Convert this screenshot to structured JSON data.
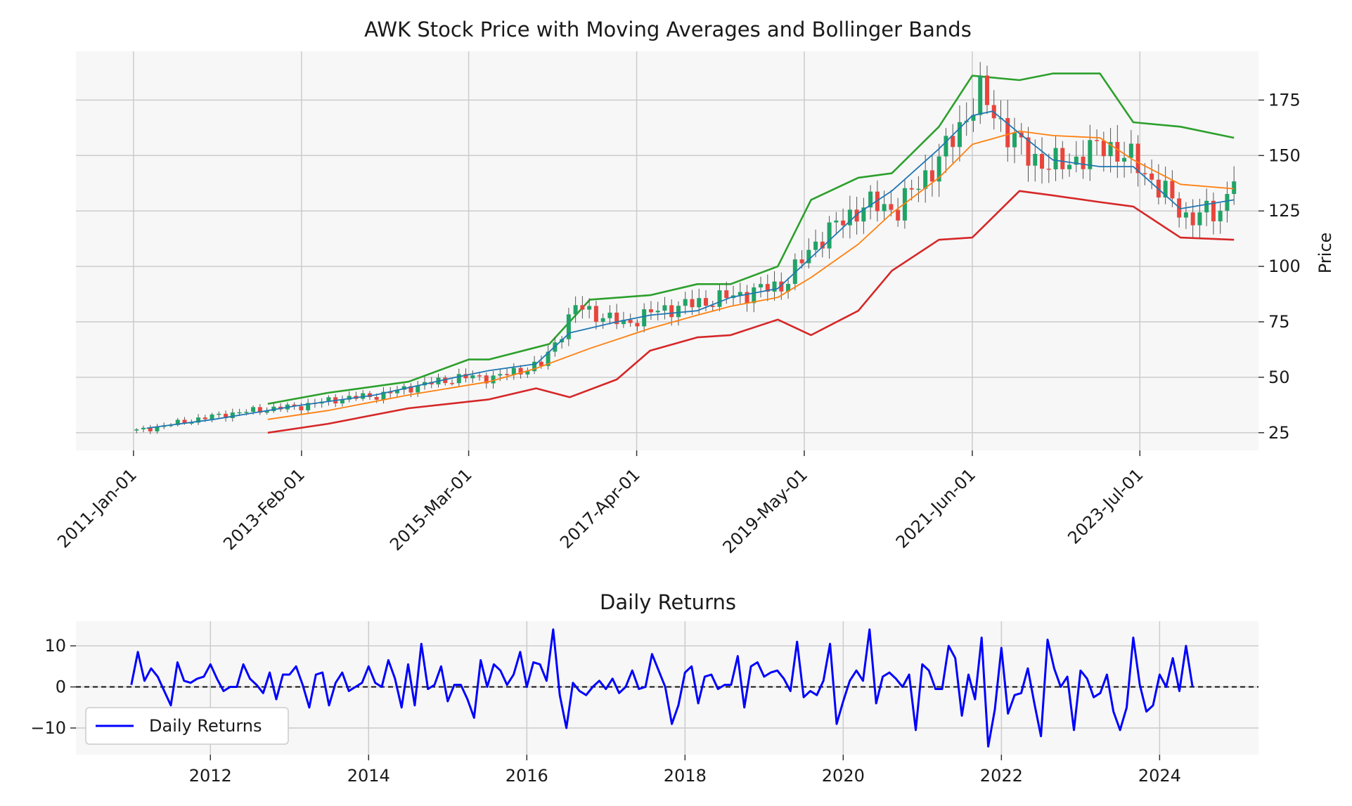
{
  "chart_data": [
    {
      "type": "candlestick",
      "title": "AWK Stock Price with Moving Averages and Bollinger Bands",
      "ylabel": "Price",
      "xlabel": "",
      "x_tick_labels": [
        "2011-Jan-01",
        "2013-Feb-01",
        "2015-Mar-01",
        "2017-Apr-01",
        "2019-May-01",
        "2021-Jun-01",
        "2023-Jul-01"
      ],
      "x_ticks": [
        "2011-01-01",
        "2013-02-01",
        "2015-03-01",
        "2017-04-01",
        "2019-05-01",
        "2021-06-01",
        "2023-07-01"
      ],
      "y_ticks": [
        25,
        50,
        75,
        100,
        125,
        150,
        175
      ],
      "xlim": [
        "2010-04-15",
        "2024-12-20"
      ],
      "ylim": [
        17,
        197
      ],
      "grid": true,
      "y_axis_side": "right",
      "colors": {
        "up": "#21a366",
        "down": "#e8453c",
        "wick": "#555555",
        "ma_short": "#1f77b4",
        "ma_long": "#ff7f0e",
        "bb_upper": "#2ca02c",
        "bb_lower": "#d62728",
        "panel_bg": "#f7f7f7",
        "grid": "#cccccc"
      },
      "series": [
        {
          "role": "ohlc",
          "x": [
            "2011-01-31",
            "2011-06-30",
            "2012-01-31",
            "2012-06-30",
            "2013-01-31",
            "2013-06-30",
            "2014-01-31",
            "2014-06-30",
            "2015-01-31",
            "2015-06-30",
            "2016-01-31",
            "2016-06-30",
            "2017-01-31",
            "2017-06-30",
            "2018-01-31",
            "2018-06-30",
            "2019-01-31",
            "2019-06-30",
            "2020-01-31",
            "2020-06-30",
            "2021-01-31",
            "2021-06-30",
            "2022-01-31",
            "2022-06-30",
            "2023-01-31",
            "2023-06-30",
            "2024-01-31",
            "2024-06-30",
            "2024-08-31"
          ],
          "close": [
            26,
            29,
            33,
            35,
            37,
            40,
            42,
            46,
            50,
            50,
            56,
            82,
            74,
            80,
            84,
            87,
            92,
            112,
            128,
            126,
            152,
            178,
            150,
            145,
            155,
            145,
            122,
            125,
            142
          ]
        },
        {
          "role": "ma_short",
          "x": [
            "2011-03-01",
            "2012-01-01",
            "2013-01-01",
            "2014-01-01",
            "2015-01-01",
            "2015-06-01",
            "2016-01-01",
            "2016-06-01",
            "2017-01-01",
            "2017-06-01",
            "2018-01-01",
            "2018-06-01",
            "2019-01-01",
            "2019-06-01",
            "2020-01-01",
            "2020-06-01",
            "2021-01-01",
            "2021-06-01",
            "2021-09-01",
            "2022-01-01",
            "2022-06-01",
            "2023-01-01",
            "2023-06-01",
            "2024-01-01",
            "2024-08-31"
          ],
          "values": [
            27,
            31,
            37,
            42,
            50,
            53,
            56,
            70,
            75,
            78,
            80,
            86,
            90,
            104,
            124,
            134,
            153,
            168,
            170,
            160,
            148,
            145,
            145,
            126,
            130
          ]
        },
        {
          "role": "ma_long",
          "x": [
            "2012-09-01",
            "2013-06-01",
            "2014-06-01",
            "2015-06-01",
            "2016-01-01",
            "2016-09-01",
            "2017-06-01",
            "2018-01-01",
            "2018-06-01",
            "2019-01-01",
            "2019-06-01",
            "2020-01-01",
            "2020-06-01",
            "2021-01-01",
            "2021-06-01",
            "2022-01-01",
            "2022-06-01",
            "2023-01-01",
            "2023-06-01",
            "2024-01-01",
            "2024-08-31"
          ],
          "values": [
            31,
            35,
            42,
            48,
            54,
            63,
            72,
            78,
            82,
            86,
            95,
            110,
            124,
            140,
            155,
            161,
            159,
            158,
            148,
            137,
            135
          ]
        },
        {
          "role": "bb_upper",
          "x": [
            "2012-09-01",
            "2013-06-01",
            "2014-06-01",
            "2015-03-01",
            "2015-06-01",
            "2016-03-01",
            "2016-09-01",
            "2017-06-01",
            "2018-01-01",
            "2018-06-01",
            "2019-01-01",
            "2019-06-01",
            "2020-01-01",
            "2020-06-01",
            "2021-01-01",
            "2021-06-01",
            "2022-01-01",
            "2022-06-01",
            "2023-01-01",
            "2023-06-01",
            "2024-01-01",
            "2024-08-31"
          ],
          "values": [
            38,
            43,
            48,
            58,
            58,
            65,
            85,
            87,
            92,
            92,
            100,
            130,
            140,
            142,
            163,
            186,
            184,
            187,
            187,
            165,
            163,
            158
          ]
        },
        {
          "role": "bb_lower",
          "x": [
            "2012-09-01",
            "2013-06-01",
            "2014-06-01",
            "2015-06-01",
            "2016-01-01",
            "2016-06-01",
            "2017-01-01",
            "2017-06-01",
            "2018-01-01",
            "2018-06-01",
            "2019-01-01",
            "2019-06-01",
            "2020-01-01",
            "2020-06-01",
            "2021-01-01",
            "2021-06-01",
            "2022-01-01",
            "2022-06-01",
            "2023-01-01",
            "2023-06-01",
            "2024-01-01",
            "2024-08-31"
          ],
          "values": [
            25,
            29,
            36,
            40,
            45,
            41,
            49,
            62,
            68,
            69,
            76,
            69,
            80,
            98,
            112,
            113,
            134,
            132,
            129,
            127,
            113,
            112
          ]
        }
      ]
    },
    {
      "type": "line",
      "title": "Daily Returns",
      "xlabel": "",
      "ylabel": "",
      "x_tick_labels": [
        "2012",
        "2014",
        "2016",
        "2018",
        "2020",
        "2022",
        "2024"
      ],
      "y_ticks": [
        -10,
        0,
        10
      ],
      "xlim": [
        2010.3,
        2025.25
      ],
      "ylim": [
        -16.5,
        16
      ],
      "grid": true,
      "legend": {
        "position": "lower-left",
        "entries": [
          "Daily Returns"
        ]
      },
      "reference_line": {
        "y": 0,
        "style": "dashed",
        "color": "#111111"
      },
      "series": [
        {
          "name": "Daily Returns",
          "color": "#0000ff",
          "x_start": 2011.0,
          "step_months": 1,
          "values": [
            0.5,
            8.5,
            1.5,
            4.5,
            2.5,
            -1,
            -4.5,
            6,
            1.5,
            1,
            2,
            2.5,
            5.5,
            2,
            -1,
            0,
            0,
            5.5,
            2,
            0.5,
            -1.5,
            3.5,
            -3,
            3,
            3,
            5,
            0.5,
            -5,
            3,
            3.5,
            -4.5,
            1,
            3.5,
            -1,
            0,
            1,
            5,
            1,
            0,
            6.5,
            2,
            -5,
            5.5,
            -4.5,
            10.5,
            -0.5,
            0.5,
            5,
            -3.5,
            0.5,
            0.5,
            -3,
            -7.5,
            6.5,
            0,
            5.5,
            4,
            0.5,
            3,
            8.5,
            0,
            6,
            5.5,
            1.5,
            14,
            -2,
            -10,
            1,
            -1,
            -2,
            0,
            1.5,
            -0.5,
            2,
            -1.5,
            0,
            4,
            -0.5,
            0,
            8,
            4,
            0,
            -9,
            -4.5,
            3.5,
            5,
            -4,
            2.5,
            3,
            -0.5,
            0.5,
            0.5,
            7.5,
            -5,
            5,
            6,
            2.5,
            3.5,
            4,
            2,
            -1,
            11,
            -2.5,
            -1,
            -2,
            1.5,
            10.5,
            -9,
            -3.5,
            1.5,
            4,
            1.5,
            14,
            -4,
            2.5,
            3.5,
            2,
            0,
            3,
            -10.5,
            5.5,
            4,
            -0.5,
            -0.5,
            10,
            7,
            -7,
            3,
            -3,
            12,
            -14.5,
            -5.5,
            9.5,
            -6.5,
            -2,
            -1.5,
            4.5,
            -4,
            -12,
            11.5,
            4.5,
            0,
            2.5,
            -10.5,
            4,
            2,
            -2.5,
            -1.5,
            3,
            -6,
            -10.5,
            -5,
            12,
            0.5,
            -6,
            -4.5,
            3,
            0,
            7,
            -1,
            10,
            0
          ]
        }
      ]
    }
  ]
}
